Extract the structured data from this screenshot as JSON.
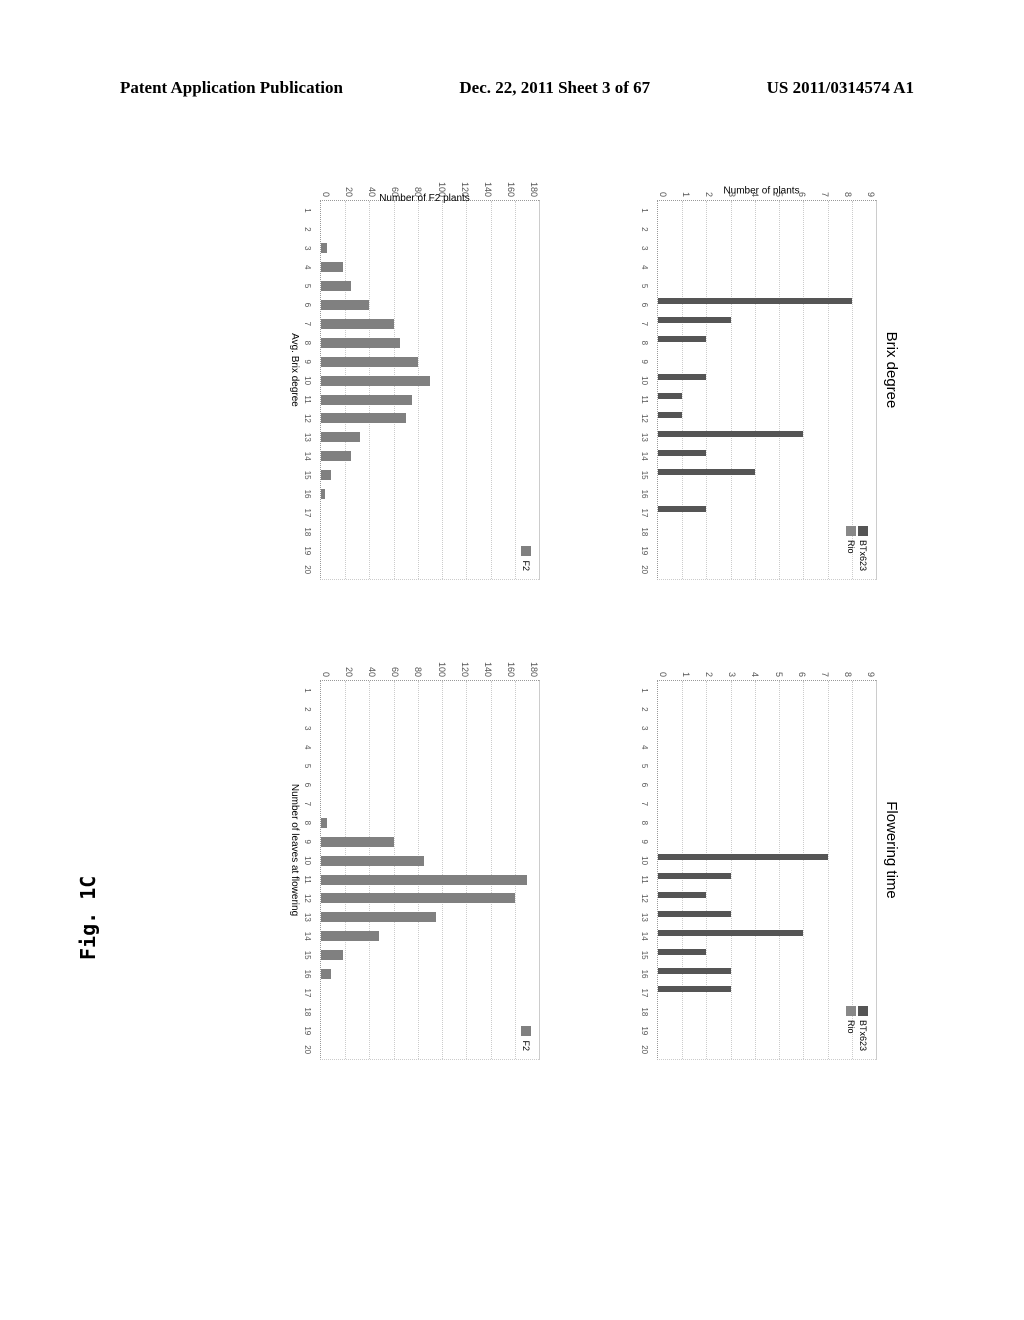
{
  "header": {
    "left": "Patent Application Publication",
    "center": "Dec. 22, 2011  Sheet 3 of 67",
    "right": "US 2011/0314574 A1"
  },
  "figure_label": "Fig. 1C",
  "colors": {
    "btx623": "#555555",
    "rio": "#888888",
    "f2": "#808080",
    "grid": "#cccccc",
    "axis": "#999999",
    "text": "#333333",
    "background": "#ffffff"
  },
  "fonts": {
    "header_size": 17,
    "title_size": 15,
    "axis_tick_size": 9,
    "axis_label_size": 10
  },
  "charts": {
    "brix_parents": {
      "type": "bar",
      "title": "Brix degree",
      "y_label": "Number of plants",
      "ylim": [
        0,
        9
      ],
      "ytick_step": 1,
      "categories": [
        1,
        2,
        3,
        4,
        5,
        6,
        7,
        8,
        9,
        10,
        11,
        12,
        13,
        14,
        15,
        16,
        17,
        18,
        19,
        20
      ],
      "series": [
        {
          "name": "BTx623",
          "color": "#555555",
          "values": [
            0,
            0,
            0,
            0,
            0,
            8,
            3,
            2,
            0,
            2,
            1,
            1,
            6,
            2,
            4,
            0,
            2,
            0,
            0,
            0
          ]
        },
        {
          "name": "Rio",
          "color": "#888888",
          "values": [
            0,
            0,
            0,
            0,
            0,
            0,
            0,
            0,
            0,
            0,
            0,
            0,
            0,
            0,
            0,
            0,
            0,
            0,
            0,
            0
          ]
        }
      ],
      "legend_items": [
        "BTx623",
        "Rio"
      ]
    },
    "flowering_parents": {
      "type": "bar",
      "title": "Flowering time",
      "y_label": "",
      "ylim": [
        0,
        9
      ],
      "ytick_step": 1,
      "categories": [
        1,
        2,
        3,
        4,
        5,
        6,
        7,
        8,
        9,
        10,
        11,
        12,
        13,
        14,
        15,
        16,
        17,
        18,
        19,
        20
      ],
      "series": [
        {
          "name": "BTx623",
          "color": "#555555",
          "values": [
            0,
            0,
            0,
            0,
            0,
            0,
            0,
            0,
            0,
            7,
            3,
            2,
            3,
            6,
            2,
            3,
            3,
            0,
            0,
            0
          ]
        },
        {
          "name": "Rio",
          "color": "#888888",
          "values": [
            0,
            0,
            0,
            0,
            0,
            0,
            0,
            0,
            0,
            0,
            0,
            0,
            0,
            0,
            0,
            0,
            0,
            0,
            0,
            0
          ]
        }
      ],
      "legend_items": [
        "BTx623",
        "Rio"
      ]
    },
    "brix_f2": {
      "type": "bar",
      "title": "",
      "x_label": "Avg. Brix degree",
      "y_label": "Number of F2 plants",
      "ylim": [
        0,
        180
      ],
      "ytick_step": 20,
      "categories": [
        1,
        2,
        3,
        4,
        5,
        6,
        7,
        8,
        9,
        10,
        11,
        12,
        13,
        14,
        15,
        16,
        17,
        18,
        19,
        20
      ],
      "series": [
        {
          "name": "F2",
          "color": "#808080",
          "values": [
            0,
            0,
            5,
            18,
            25,
            40,
            60,
            65,
            80,
            90,
            75,
            70,
            32,
            25,
            8,
            3,
            0,
            0,
            0,
            0
          ]
        }
      ],
      "legend_items": [
        "F2"
      ]
    },
    "flowering_f2": {
      "type": "bar",
      "title": "",
      "x_label": "Number of leaves at flowering",
      "y_label": "",
      "ylim": [
        0,
        180
      ],
      "ytick_step": 20,
      "categories": [
        1,
        2,
        3,
        4,
        5,
        6,
        7,
        8,
        9,
        10,
        11,
        12,
        13,
        14,
        15,
        16,
        17,
        18,
        19,
        20
      ],
      "series": [
        {
          "name": "F2",
          "color": "#808080",
          "values": [
            0,
            0,
            0,
            0,
            0,
            0,
            0,
            5,
            60,
            85,
            170,
            160,
            95,
            48,
            18,
            8,
            0,
            0,
            0,
            0
          ]
        }
      ],
      "legend_items": [
        "F2"
      ]
    }
  }
}
